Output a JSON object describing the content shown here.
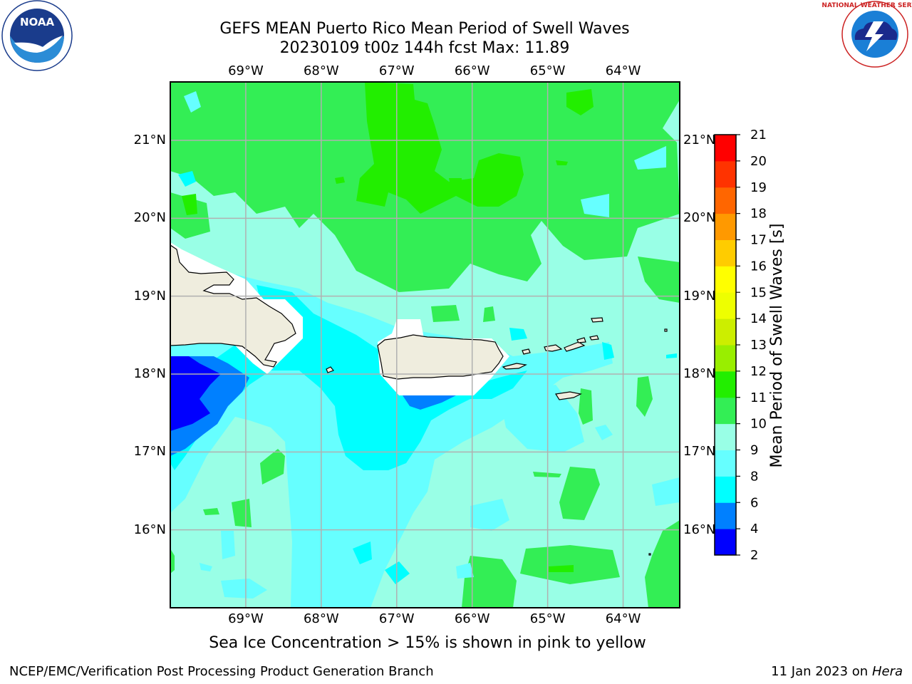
{
  "header": {
    "title_line1": "GEFS MEAN Puerto Rico Mean Period of Swell Waves",
    "title_line2": "20230109 t00z 144h fcst   Max: 11.89"
  },
  "logos": {
    "left": {
      "name": "NOAA",
      "ring_text": "NATIONAL OCEANIC AND ATMOSPHERIC ADMINISTRATION · U.S. DEPARTMENT OF COMMERCE"
    },
    "right": {
      "name": "NATIONAL WEATHER SERVICE"
    }
  },
  "map": {
    "lon_range": [
      -70.0,
      -63.25
    ],
    "lat_range": [
      15.0,
      21.75
    ],
    "lon_ticks": [
      "69°W",
      "68°W",
      "67°W",
      "66°W",
      "65°W",
      "64°W"
    ],
    "lon_tick_values": [
      -69,
      -68,
      -67,
      -66,
      -65,
      -64
    ],
    "lat_ticks": [
      "16°N",
      "17°N",
      "18°N",
      "19°N",
      "20°N",
      "21°N"
    ],
    "lat_tick_values": [
      16,
      17,
      18,
      19,
      20,
      21
    ],
    "grid": true,
    "land_color": "#efedde",
    "gridline_color": "#b0b0b0"
  },
  "colorbar": {
    "label": "Mean Period of Swell Waves [s]",
    "tick_labels": [
      "2",
      "4",
      "6",
      "8",
      "9",
      "10",
      "11",
      "12",
      "13",
      "14",
      "15",
      "16",
      "17",
      "18",
      "19",
      "20",
      "21"
    ],
    "colors": [
      "#0000ff",
      "#0080ff",
      "#00ffff",
      "#66ffff",
      "#99ffe6",
      "#33ee55",
      "#22ee00",
      "#99ee00",
      "#ccee00",
      "#eeff00",
      "#ffff00",
      "#ffcc00",
      "#ff9900",
      "#ff6600",
      "#ff3300",
      "#ff0000"
    ]
  },
  "caption": "Sea Ice Concentration > 15% is shown in pink to yellow",
  "footer": {
    "left": "NCEP/EMC/Verification Post Processing Product Generation Branch",
    "right_prefix": "11 Jan 2023 on ",
    "right_host": "Hera"
  }
}
